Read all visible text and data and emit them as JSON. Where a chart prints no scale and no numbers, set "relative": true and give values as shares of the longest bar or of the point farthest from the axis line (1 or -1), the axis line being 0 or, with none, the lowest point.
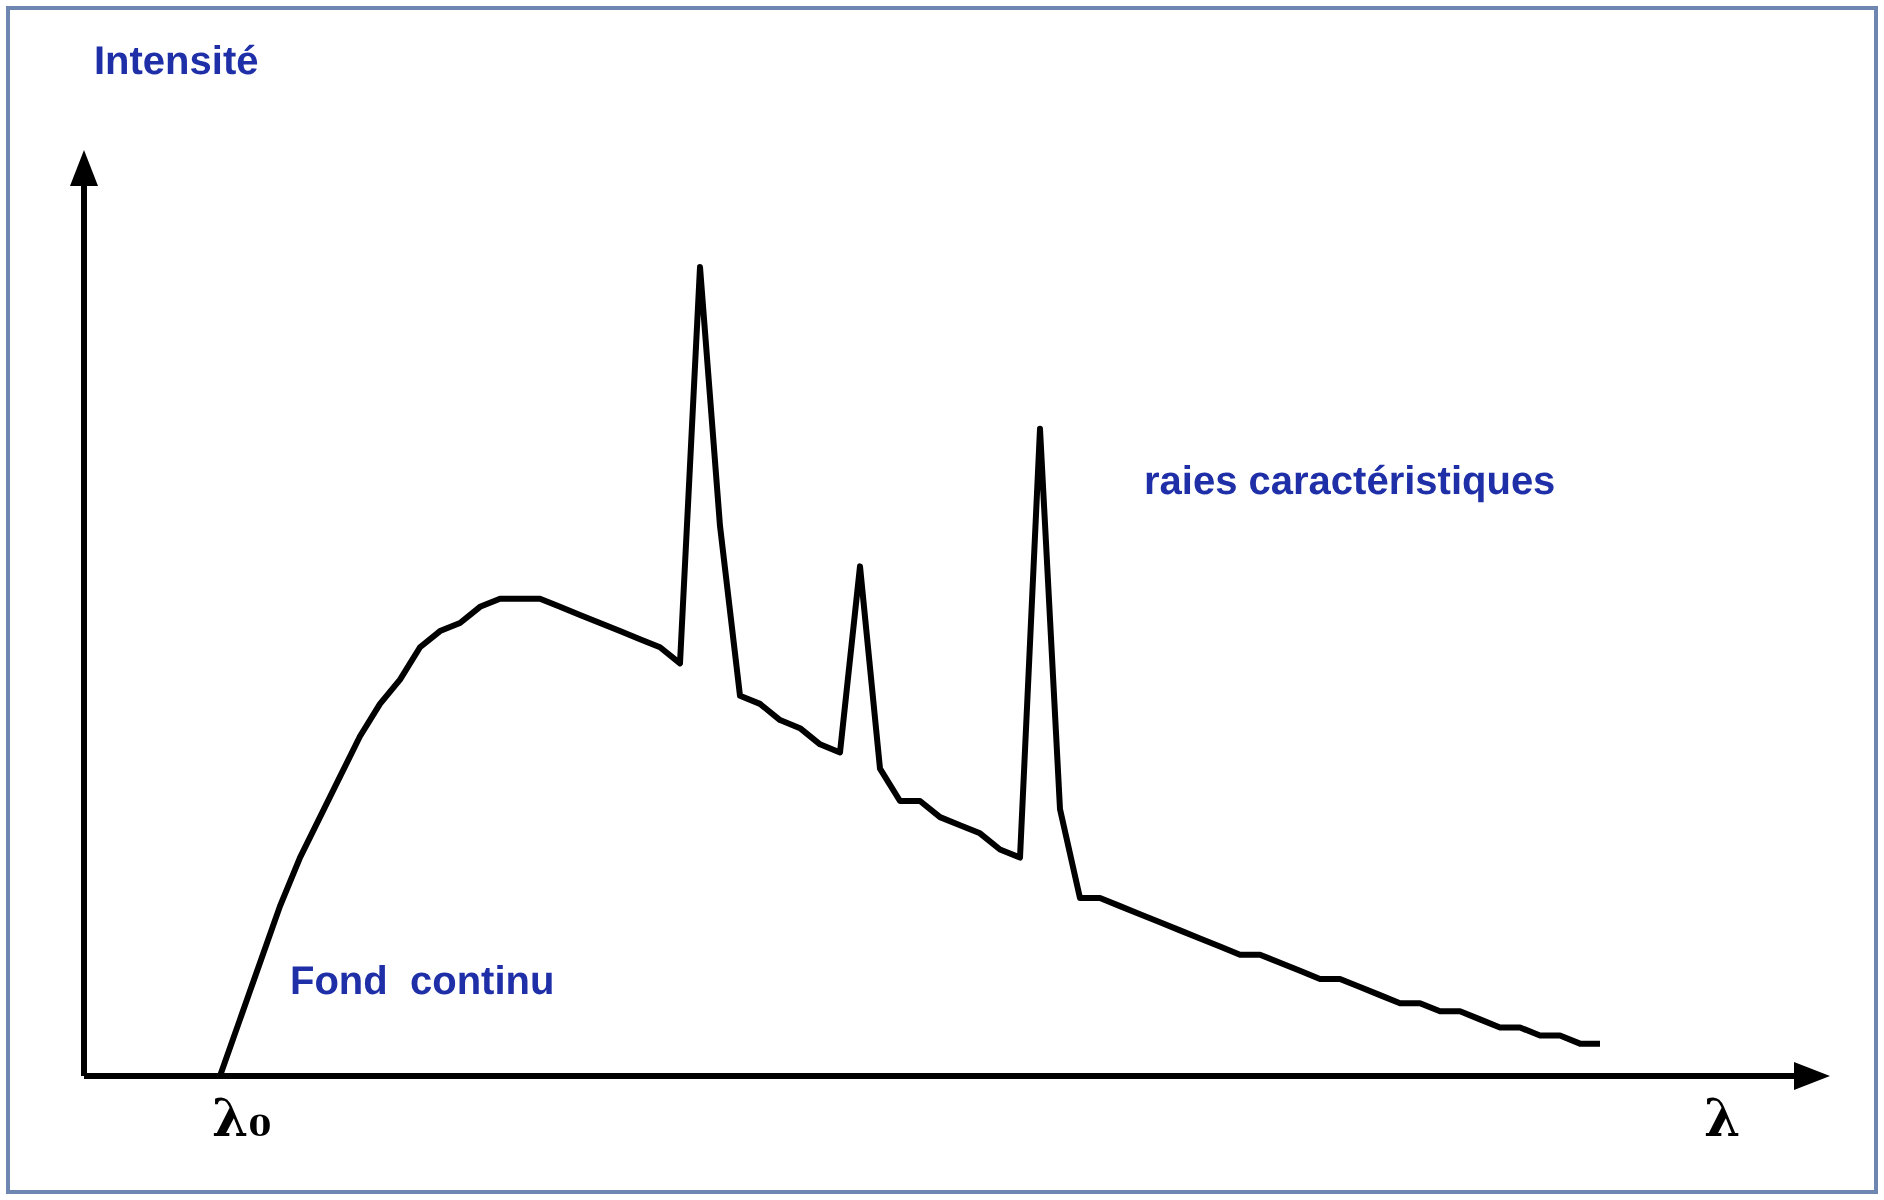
{
  "chart_data": {
    "type": "line",
    "relative": true,
    "xlabel": "λ",
    "ylabel": "Intensité",
    "color": "#000000",
    "marker": "none",
    "categories": [
      null,
      null,
      null,
      null,
      null,
      null,
      null,
      null,
      null,
      null,
      null,
      null,
      null,
      null,
      null,
      null,
      null,
      null,
      null,
      null,
      null,
      null,
      null,
      null,
      null,
      null,
      null,
      null,
      null,
      null,
      null,
      null,
      null,
      null,
      null,
      null,
      null,
      null,
      null,
      null,
      null,
      null,
      null,
      null,
      null,
      null,
      null,
      null,
      null,
      null,
      null,
      null,
      null,
      null,
      null,
      null,
      null,
      null,
      null,
      null,
      null,
      null,
      null,
      null,
      null,
      null,
      null,
      null,
      null,
      null
    ],
    "values": [
      0,
      0.07,
      0.14,
      0.21,
      0.27,
      0.32,
      0.37,
      0.42,
      0.46,
      0.49,
      0.53,
      0.55,
      0.56,
      0.58,
      0.59,
      0.59,
      0.59,
      0.58,
      0.57,
      0.56,
      0.55,
      0.54,
      0.53,
      0.51,
      1,
      0.68,
      0.47,
      0.46,
      0.44,
      0.43,
      0.41,
      0.4,
      0.63,
      0.38,
      0.34,
      0.34,
      0.32,
      0.31,
      0.3,
      0.28,
      0.27,
      0.8,
      0.33,
      0.22,
      0.22,
      0.21,
      0.2,
      0.19,
      0.18,
      0.17,
      0.16,
      0.15,
      0.15,
      0.14,
      0.13,
      0.12,
      0.12,
      0.11,
      0.1,
      0.09,
      0.09,
      0.08,
      0.08,
      0.07,
      0.06,
      0.06,
      0.05,
      0.05,
      0.04,
      0.04
    ],
    "annotations": [
      "raies caractéristiques",
      "Fond  continu",
      "λ₀"
    ]
  }
}
